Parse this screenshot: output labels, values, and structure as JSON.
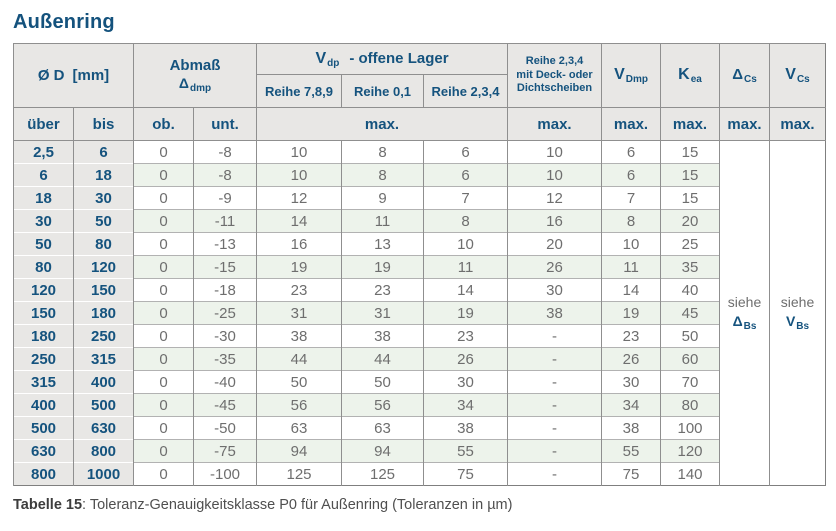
{
  "page_title": "Außenring",
  "colors": {
    "brand_blue": "#15537e",
    "header_gray": "#e8e7e5",
    "row_green": "#edf3eb",
    "data_text_gray": "#6e6e6e",
    "grid_gray": "#8f8f8f"
  },
  "table": {
    "header": {
      "col_d": {
        "label": "Ø D",
        "unit": "[mm]"
      },
      "col_abmass": {
        "line1": "Abmaß",
        "base": "Δ",
        "sub": "dmp"
      },
      "col_vdp": {
        "base": "V",
        "sub": "dp",
        "rest": "-  offene Lager"
      },
      "vdp_sub": [
        "Reihe 7,8,9",
        "Reihe 0,1",
        "Reihe 2,3,4"
      ],
      "col_deck": [
        "Reihe 2,3,4",
        "mit Deck- oder",
        "Dichtscheiben"
      ],
      "col_vdmp": {
        "base": "V",
        "sub": "Dmp"
      },
      "col_kea": {
        "base": "K",
        "sub": "ea"
      },
      "col_dcs": {
        "base": "Δ",
        "sub": "Cs"
      },
      "col_vcs": {
        "base": "V",
        "sub": "Cs"
      },
      "row2": {
        "ueber": "über",
        "bis": "bis",
        "ob": "ob.",
        "unt": "unt.",
        "max": "max."
      }
    },
    "rows": [
      {
        "ueber": "2,5",
        "bis": "6",
        "ob": "0",
        "unt": "-8",
        "r789": "10",
        "r01": "8",
        "r234": "6",
        "deck": "10",
        "vdmp": "6",
        "kea": "15"
      },
      {
        "ueber": "6",
        "bis": "18",
        "ob": "0",
        "unt": "-8",
        "r789": "10",
        "r01": "8",
        "r234": "6",
        "deck": "10",
        "vdmp": "6",
        "kea": "15"
      },
      {
        "ueber": "18",
        "bis": "30",
        "ob": "0",
        "unt": "-9",
        "r789": "12",
        "r01": "9",
        "r234": "7",
        "deck": "12",
        "vdmp": "7",
        "kea": "15"
      },
      {
        "ueber": "30",
        "bis": "50",
        "ob": "0",
        "unt": "-11",
        "r789": "14",
        "r01": "11",
        "r234": "8",
        "deck": "16",
        "vdmp": "8",
        "kea": "20"
      },
      {
        "ueber": "50",
        "bis": "80",
        "ob": "0",
        "unt": "-13",
        "r789": "16",
        "r01": "13",
        "r234": "10",
        "deck": "20",
        "vdmp": "10",
        "kea": "25"
      },
      {
        "ueber": "80",
        "bis": "120",
        "ob": "0",
        "unt": "-15",
        "r789": "19",
        "r01": "19",
        "r234": "11",
        "deck": "26",
        "vdmp": "11",
        "kea": "35"
      },
      {
        "ueber": "120",
        "bis": "150",
        "ob": "0",
        "unt": "-18",
        "r789": "23",
        "r01": "23",
        "r234": "14",
        "deck": "30",
        "vdmp": "14",
        "kea": "40"
      },
      {
        "ueber": "150",
        "bis": "180",
        "ob": "0",
        "unt": "-25",
        "r789": "31",
        "r01": "31",
        "r234": "19",
        "deck": "38",
        "vdmp": "19",
        "kea": "45"
      },
      {
        "ueber": "180",
        "bis": "250",
        "ob": "0",
        "unt": "-30",
        "r789": "38",
        "r01": "38",
        "r234": "23",
        "deck": "-",
        "vdmp": "23",
        "kea": "50"
      },
      {
        "ueber": "250",
        "bis": "315",
        "ob": "0",
        "unt": "-35",
        "r789": "44",
        "r01": "44",
        "r234": "26",
        "deck": "-",
        "vdmp": "26",
        "kea": "60"
      },
      {
        "ueber": "315",
        "bis": "400",
        "ob": "0",
        "unt": "-40",
        "r789": "50",
        "r01": "50",
        "r234": "30",
        "deck": "-",
        "vdmp": "30",
        "kea": "70"
      },
      {
        "ueber": "400",
        "bis": "500",
        "ob": "0",
        "unt": "-45",
        "r789": "56",
        "r01": "56",
        "r234": "34",
        "deck": "-",
        "vdmp": "34",
        "kea": "80"
      },
      {
        "ueber": "500",
        "bis": "630",
        "ob": "0",
        "unt": "-50",
        "r789": "63",
        "r01": "63",
        "r234": "38",
        "deck": "-",
        "vdmp": "38",
        "kea": "100"
      },
      {
        "ueber": "630",
        "bis": "800",
        "ob": "0",
        "unt": "-75",
        "r789": "94",
        "r01": "94",
        "r234": "55",
        "deck": "-",
        "vdmp": "55",
        "kea": "120"
      },
      {
        "ueber": "800",
        "bis": "1000",
        "ob": "0",
        "unt": "-100",
        "r789": "125",
        "r01": "125",
        "r234": "75",
        "deck": "-",
        "vdmp": "75",
        "kea": "140"
      }
    ],
    "siehe_dbs": {
      "word": "siehe",
      "base": "Δ",
      "sub": "Bs"
    },
    "siehe_vbs": {
      "word": "siehe",
      "base": "V",
      "sub": "Bs"
    }
  },
  "caption": {
    "label": "Tabelle 15",
    "text": ": Toleranz-Genauigkeitsklasse P0 für Außenring (Toleranzen in µm)"
  }
}
